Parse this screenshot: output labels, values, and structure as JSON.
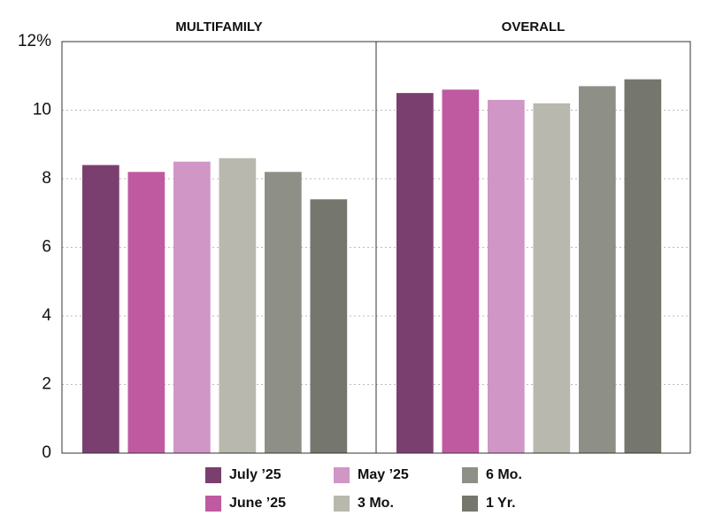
{
  "chart_data": {
    "type": "bar",
    "categories": [
      "MULTIFAMILY",
      "OVERALL"
    ],
    "series": [
      {
        "name": "July ’25",
        "color": "#7a3f6e",
        "values": [
          8.4,
          10.5
        ]
      },
      {
        "name": "June ’25",
        "color": "#c05aa0",
        "values": [
          8.2,
          10.6
        ]
      },
      {
        "name": "May ’25",
        "color": "#d096c6",
        "values": [
          8.5,
          10.3
        ]
      },
      {
        "name": "3 Mo.",
        "color": "#b8b8ae",
        "values": [
          8.6,
          10.2
        ]
      },
      {
        "name": "6 Mo.",
        "color": "#8e8f86",
        "values": [
          8.2,
          10.7
        ]
      },
      {
        "name": "1 Yr.",
        "color": "#75766e",
        "values": [
          7.4,
          10.9
        ]
      }
    ],
    "ylim": [
      0,
      12
    ],
    "yticks": [
      0,
      2,
      4,
      6,
      8,
      10,
      {
        "value": 12,
        "label": "12%"
      }
    ],
    "grid": true
  }
}
